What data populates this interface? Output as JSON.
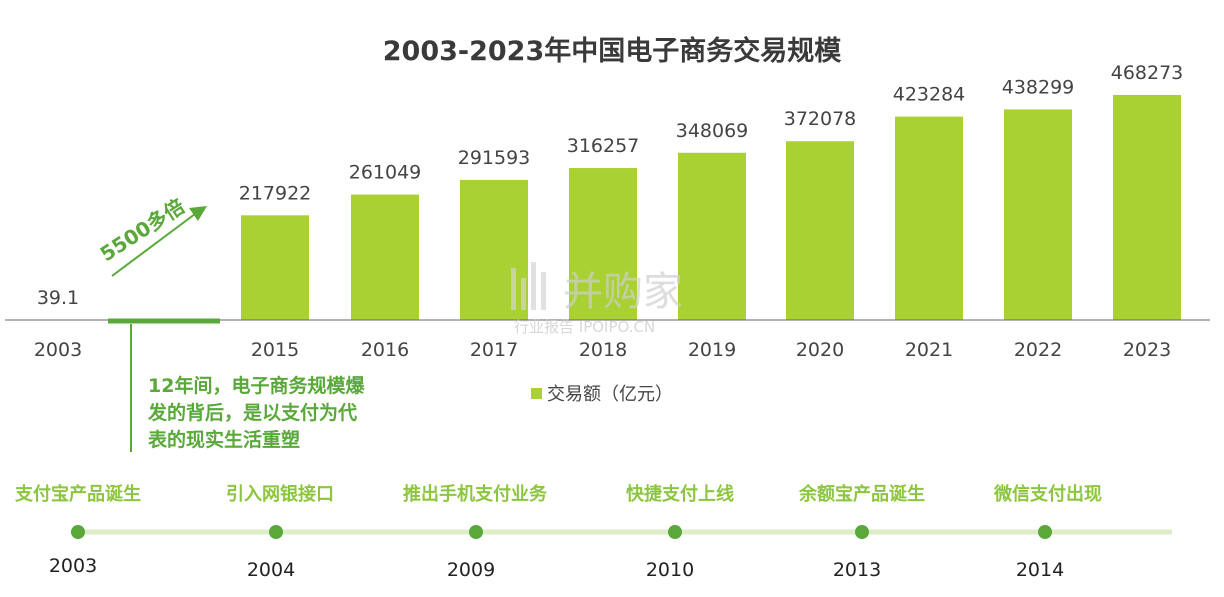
{
  "chart_data": {
    "type": "bar",
    "title": "2003-2023年中国电子商务交易规模",
    "categories": [
      "2003",
      "2015",
      "2016",
      "2017",
      "2018",
      "2019",
      "2020",
      "2021",
      "2022",
      "2023"
    ],
    "values": [
      39.1,
      217922,
      261049,
      291593,
      316257,
      348069,
      372078,
      423284,
      438299,
      468273
    ],
    "value_labels": [
      "39.1",
      "217922",
      "261049",
      "291593",
      "316257",
      "348069",
      "372078",
      "423284",
      "438299",
      "468273"
    ],
    "legend": "交易额（亿元）",
    "legend_position": "bottom-center",
    "bar_color": "#a9d134",
    "grid": false
  },
  "annotation": {
    "growth_label": "5500多倍",
    "note_lines": [
      "12年间，电子商务规模爆",
      "发的背后，是以支付为代",
      "表的现实生活重塑"
    ],
    "color": "#5aa83a"
  },
  "timeline": {
    "events": [
      {
        "label": "支付宝产品诞生",
        "year": "2003"
      },
      {
        "label": "引入网银接口",
        "year": "2004"
      },
      {
        "label": "推出手机支付业务",
        "year": "2009"
      },
      {
        "label": "快捷支付上线",
        "year": "2010"
      },
      {
        "label": "余额宝产品诞生",
        "year": "2013"
      },
      {
        "label": "微信支付出现",
        "year": "2014"
      }
    ],
    "line_color": "#dcedc8",
    "dot_color": "#5aa83a"
  },
  "watermark": {
    "main": "并购家",
    "sub": "行业报告 IPOIPO.CN"
  }
}
